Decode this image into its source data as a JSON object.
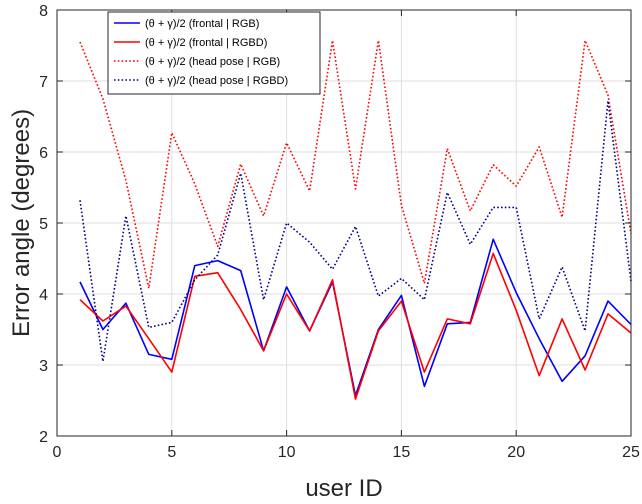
{
  "chart_data": {
    "type": "line",
    "xlabel": "user ID",
    "ylabel": "Error angle (degrees)",
    "xlim": [
      0,
      25
    ],
    "ylim": [
      2,
      8
    ],
    "xticks": [
      0,
      5,
      10,
      15,
      20,
      25
    ],
    "yticks": [
      2,
      3,
      4,
      5,
      6,
      7,
      8
    ],
    "grid": true,
    "legend_position": "top-left",
    "x": [
      1,
      2,
      3,
      4,
      5,
      6,
      7,
      8,
      9,
      10,
      11,
      12,
      13,
      14,
      15,
      16,
      17,
      18,
      19,
      20,
      21,
      22,
      23,
      24,
      25
    ],
    "series": [
      {
        "name": "(θ + γ)/2 (frontal | RGB)",
        "color": "#0000ff",
        "style": "solid",
        "values": [
          4.17,
          3.5,
          3.87,
          3.15,
          3.08,
          4.4,
          4.47,
          4.33,
          3.2,
          4.1,
          3.48,
          4.17,
          2.57,
          3.5,
          3.98,
          2.7,
          3.58,
          3.6,
          4.77,
          4.02,
          3.37,
          2.77,
          3.13,
          3.9,
          3.57
        ]
      },
      {
        "name": "(θ + γ)/2 (frontal | RGBD)",
        "color": "#ff0000",
        "style": "solid",
        "values": [
          3.92,
          3.62,
          3.83,
          3.37,
          2.9,
          4.25,
          4.3,
          3.78,
          3.2,
          4.0,
          3.48,
          4.2,
          2.52,
          3.48,
          3.9,
          2.9,
          3.65,
          3.58,
          4.57,
          3.77,
          2.85,
          3.65,
          2.93,
          3.72,
          3.45
        ]
      },
      {
        "name": "(θ + γ)/2 (head pose | RGB)",
        "color": "#ff0000",
        "style": "dotted",
        "values": [
          7.55,
          6.75,
          5.6,
          4.08,
          6.27,
          5.55,
          4.67,
          5.83,
          5.1,
          6.13,
          5.45,
          7.57,
          5.48,
          7.57,
          5.25,
          4.15,
          6.05,
          5.17,
          5.82,
          5.52,
          6.07,
          5.08,
          7.57,
          6.8,
          4.85
        ]
      },
      {
        "name": "(θ + γ)/2 (head pose | RGBD)",
        "color": "#00008b",
        "style": "dotted",
        "values": [
          5.32,
          3.05,
          5.1,
          3.53,
          3.6,
          4.2,
          4.55,
          5.7,
          3.92,
          5.0,
          4.73,
          4.35,
          4.95,
          3.97,
          4.22,
          3.92,
          5.43,
          4.7,
          5.22,
          5.22,
          3.65,
          4.38,
          3.48,
          6.72,
          4.18
        ]
      }
    ]
  }
}
